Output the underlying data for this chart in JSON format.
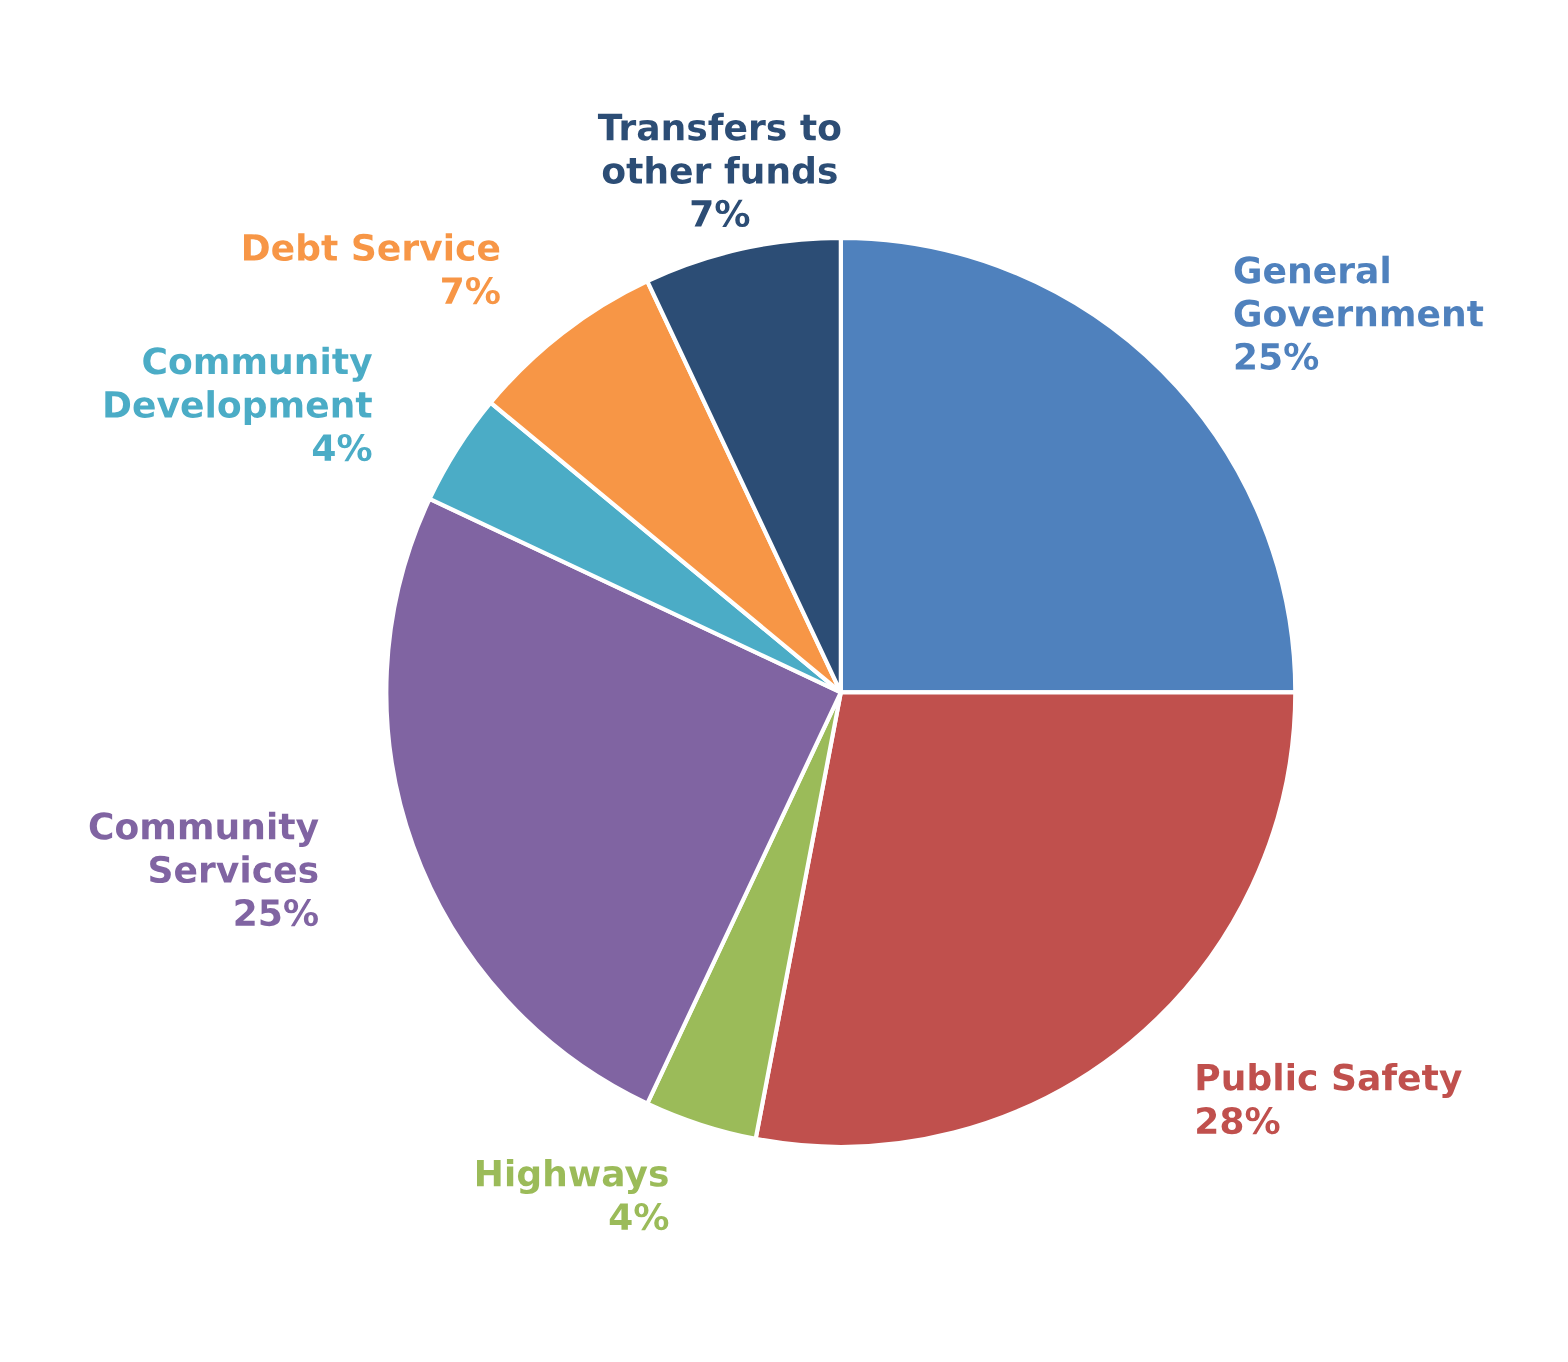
{
  "chart_data": {
    "type": "pie",
    "categories": [
      "General Government",
      "Public Safety",
      "Highways",
      "Community Services",
      "Community Development",
      "Debt Service",
      "Transfers to other funds"
    ],
    "values": [
      25,
      28,
      4,
      25,
      4,
      7,
      7
    ],
    "colors": [
      "#4f81bd",
      "#c0504d",
      "#9bbb59",
      "#8064a2",
      "#4bacc6",
      "#f79646",
      "#2c4d75"
    ],
    "value_labels": [
      "25%",
      "28%",
      "4%",
      "25%",
      "4%",
      "7%",
      "7%"
    ],
    "legend": false
  }
}
